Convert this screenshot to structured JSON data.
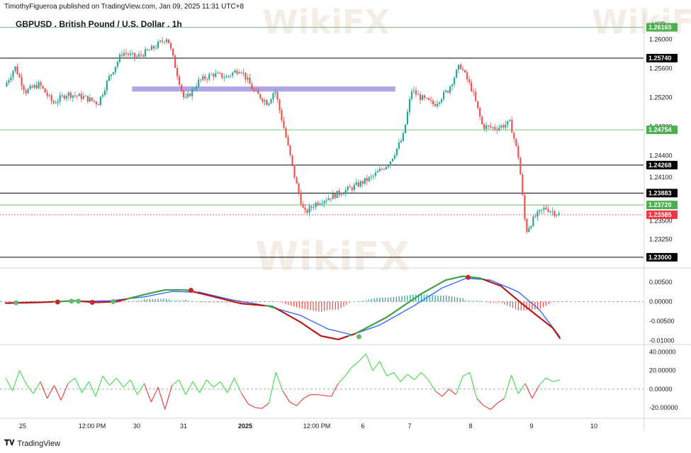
{
  "header": {
    "publisher": "TimothyFigueroa published on TradingView.com, Jan 09, 2025 11:31 UTC+8",
    "title": "GBPUSD . British Pound / U.S. Dollar . 1h",
    "currency": "USD",
    "footer": "TradingView",
    "watermark": "WikiFX"
  },
  "colors": {
    "up": "#26a69a",
    "down": "#ef5350",
    "green_line": "#4caf50",
    "black_line": "#000000",
    "zone": "#9c8fe0",
    "last_price": "#ef5350",
    "macd_fast": "#43a047",
    "macd_fast_dn": "#b71c1c",
    "macd_signal": "#2962ff",
    "osc_up": "#43d94b",
    "osc_dn": "#e53935"
  },
  "chart_data": [
    {
      "type": "candlestick",
      "name": "GBPUSD 1h price",
      "x_ticks": [
        "25",
        "12:00 PM",
        "30",
        "31",
        "2025",
        "12:00 PM",
        "6",
        "7",
        "8",
        "9",
        "10"
      ],
      "y_ticks": [
        "1.26000",
        "1.25600",
        "1.25200",
        "1.24800",
        "1.24400",
        "1.24100",
        "1.23500",
        "1.23250"
      ],
      "ylim": [
        1.2295,
        1.2615
      ],
      "levels": [
        {
          "value": 1.26165,
          "label": "1.26165",
          "kind": "green"
        },
        {
          "value": 1.2574,
          "label": "1.25740",
          "kind": "black"
        },
        {
          "value": 1.24754,
          "label": "1.24754",
          "kind": "green"
        },
        {
          "value": 1.24268,
          "label": "1.24268",
          "kind": "black"
        },
        {
          "value": 1.23883,
          "label": "1.23883",
          "kind": "black"
        },
        {
          "value": 1.2372,
          "label": "1.23720",
          "kind": "green"
        },
        {
          "value": 1.23585,
          "label": "1.23585",
          "kind": "last"
        },
        {
          "value": 1.23,
          "label": "1.23000",
          "kind": "black"
        }
      ],
      "resistance_zone": {
        "from_day": 3.65,
        "to_day": 11.25,
        "low": 1.2528,
        "high": 1.2535
      },
      "path": [
        {
          "day": 0.0,
          "price": 1.2535
        },
        {
          "day": 0.3,
          "price": 1.2562
        },
        {
          "day": 0.6,
          "price": 1.2528
        },
        {
          "day": 1.0,
          "price": 1.2538
        },
        {
          "day": 1.4,
          "price": 1.2512
        },
        {
          "day": 1.8,
          "price": 1.2525
        },
        {
          "day": 2.3,
          "price": 1.252
        },
        {
          "day": 2.7,
          "price": 1.2512
        },
        {
          "day": 3.0,
          "price": 1.2546
        },
        {
          "day": 3.4,
          "price": 1.2582
        },
        {
          "day": 3.8,
          "price": 1.2575
        },
        {
          "day": 4.3,
          "price": 1.2588
        },
        {
          "day": 4.7,
          "price": 1.2603
        },
        {
          "day": 4.95,
          "price": 1.2558
        },
        {
          "day": 5.2,
          "price": 1.2515
        },
        {
          "day": 5.6,
          "price": 1.2542
        },
        {
          "day": 6.0,
          "price": 1.2552
        },
        {
          "day": 6.4,
          "price": 1.2548
        },
        {
          "day": 6.8,
          "price": 1.256
        },
        {
          "day": 7.2,
          "price": 1.2528
        },
        {
          "day": 7.6,
          "price": 1.2512
        },
        {
          "day": 7.8,
          "price": 1.2531
        },
        {
          "day": 8.1,
          "price": 1.247
        },
        {
          "day": 8.4,
          "price": 1.2405
        },
        {
          "day": 8.65,
          "price": 1.236
        },
        {
          "day": 9.0,
          "price": 1.2375
        },
        {
          "day": 9.5,
          "price": 1.2385
        },
        {
          "day": 10.0,
          "price": 1.2395
        },
        {
          "day": 10.6,
          "price": 1.241
        },
        {
          "day": 11.1,
          "price": 1.243
        },
        {
          "day": 11.5,
          "price": 1.2465
        },
        {
          "day": 11.75,
          "price": 1.253
        },
        {
          "day": 12.0,
          "price": 1.252
        },
        {
          "day": 12.4,
          "price": 1.251
        },
        {
          "day": 12.8,
          "price": 1.253
        },
        {
          "day": 13.15,
          "price": 1.2565
        },
        {
          "day": 13.5,
          "price": 1.253
        },
        {
          "day": 13.8,
          "price": 1.248
        },
        {
          "day": 14.2,
          "price": 1.2478
        },
        {
          "day": 14.6,
          "price": 1.2485
        },
        {
          "day": 14.85,
          "price": 1.2435
        },
        {
          "day": 15.05,
          "price": 1.2335
        },
        {
          "day": 15.3,
          "price": 1.2355
        },
        {
          "day": 15.6,
          "price": 1.2368
        },
        {
          "day": 16.0,
          "price": 1.2359
        }
      ]
    },
    {
      "type": "line",
      "name": "MACD",
      "y_ticks": [
        "0.00500",
        "0.00000",
        "-0.00500",
        "-0.01000"
      ],
      "ylim": [
        -0.011,
        0.0068
      ],
      "fast": [
        {
          "day": 0.0,
          "value": -0.0004
        },
        {
          "day": 1.0,
          "value": -0.0002
        },
        {
          "day": 2.0,
          "value": 0.0002
        },
        {
          "day": 2.6,
          "value": -0.0002
        },
        {
          "day": 3.2,
          "value": 0.0
        },
        {
          "day": 4.0,
          "value": 0.0018
        },
        {
          "day": 4.6,
          "value": 0.003
        },
        {
          "day": 5.2,
          "value": 0.003
        },
        {
          "day": 5.9,
          "value": 0.0015
        },
        {
          "day": 6.8,
          "value": -0.0005
        },
        {
          "day": 7.7,
          "value": -0.0012
        },
        {
          "day": 8.5,
          "value": -0.0052
        },
        {
          "day": 9.1,
          "value": -0.0088
        },
        {
          "day": 9.6,
          "value": -0.0097
        },
        {
          "day": 10.1,
          "value": -0.0082
        },
        {
          "day": 11.0,
          "value": -0.004
        },
        {
          "day": 12.0,
          "value": 0.002
        },
        {
          "day": 12.7,
          "value": 0.0055
        },
        {
          "day": 13.2,
          "value": 0.0065
        },
        {
          "day": 13.7,
          "value": 0.006
        },
        {
          "day": 14.3,
          "value": 0.004
        },
        {
          "day": 14.9,
          "value": -0.0005
        },
        {
          "day": 15.4,
          "value": -0.004
        },
        {
          "day": 15.8,
          "value": -0.0068
        },
        {
          "day": 16.0,
          "value": -0.0094
        }
      ],
      "signal": [
        {
          "day": 0.0,
          "value": -0.0003
        },
        {
          "day": 1.0,
          "value": -0.0001
        },
        {
          "day": 2.0,
          "value": 0.0001
        },
        {
          "day": 3.0,
          "value": 0.0002
        },
        {
          "day": 4.0,
          "value": 0.0012
        },
        {
          "day": 4.8,
          "value": 0.0026
        },
        {
          "day": 5.6,
          "value": 0.0024
        },
        {
          "day": 6.5,
          "value": 0.0005
        },
        {
          "day": 7.5,
          "value": -0.001
        },
        {
          "day": 8.5,
          "value": -0.0035
        },
        {
          "day": 9.3,
          "value": -0.007
        },
        {
          "day": 10.0,
          "value": -0.0085
        },
        {
          "day": 10.8,
          "value": -0.006
        },
        {
          "day": 11.8,
          "value": -0.001
        },
        {
          "day": 12.6,
          "value": 0.0035
        },
        {
          "day": 13.3,
          "value": 0.006
        },
        {
          "day": 14.0,
          "value": 0.0055
        },
        {
          "day": 14.8,
          "value": 0.0025
        },
        {
          "day": 15.4,
          "value": -0.002
        },
        {
          "day": 16.0,
          "value": -0.009
        }
      ],
      "cross_markers": [
        {
          "day": 0.3,
          "value": -0.0003,
          "color": "green"
        },
        {
          "day": 1.5,
          "value": -0.0001,
          "color": "red"
        },
        {
          "day": 1.9,
          "value": 0.0001,
          "color": "green"
        },
        {
          "day": 2.1,
          "value": 0.0001,
          "color": "green"
        },
        {
          "day": 2.5,
          "value": -0.0002,
          "color": "red"
        },
        {
          "day": 3.1,
          "value": 0.0,
          "color": "green"
        },
        {
          "day": 5.35,
          "value": 0.0029,
          "color": "red"
        },
        {
          "day": 10.2,
          "value": -0.009,
          "color": "green"
        },
        {
          "day": 13.35,
          "value": 0.0062,
          "color": "red"
        }
      ]
    },
    {
      "type": "line",
      "name": "Oscillator",
      "y_ticks": [
        "40.00000",
        "20.00000",
        "0.00000",
        "-20.00000"
      ],
      "ylim": [
        -30,
        45
      ],
      "points": [
        {
          "day": 0.0,
          "value": 12
        },
        {
          "day": 0.2,
          "value": -2
        },
        {
          "day": 0.4,
          "value": 20
        },
        {
          "day": 0.6,
          "value": 5
        },
        {
          "day": 0.8,
          "value": -5
        },
        {
          "day": 1.0,
          "value": 8
        },
        {
          "day": 1.2,
          "value": -10
        },
        {
          "day": 1.4,
          "value": 4
        },
        {
          "day": 1.6,
          "value": -12
        },
        {
          "day": 1.8,
          "value": 6
        },
        {
          "day": 2.0,
          "value": 12
        },
        {
          "day": 2.2,
          "value": -4
        },
        {
          "day": 2.4,
          "value": 8
        },
        {
          "day": 2.6,
          "value": -8
        },
        {
          "day": 2.8,
          "value": 14
        },
        {
          "day": 3.0,
          "value": 4
        },
        {
          "day": 3.2,
          "value": 12
        },
        {
          "day": 3.4,
          "value": 2
        },
        {
          "day": 3.6,
          "value": 10
        },
        {
          "day": 3.8,
          "value": -6
        },
        {
          "day": 4.0,
          "value": 6
        },
        {
          "day": 4.2,
          "value": -14
        },
        {
          "day": 4.4,
          "value": 2
        },
        {
          "day": 4.6,
          "value": -22
        },
        {
          "day": 4.8,
          "value": 4
        },
        {
          "day": 5.0,
          "value": 10
        },
        {
          "day": 5.2,
          "value": -6
        },
        {
          "day": 5.4,
          "value": 8
        },
        {
          "day": 5.6,
          "value": -4
        },
        {
          "day": 5.8,
          "value": 10
        },
        {
          "day": 6.0,
          "value": 2
        },
        {
          "day": 6.2,
          "value": 8
        },
        {
          "day": 6.4,
          "value": -4
        },
        {
          "day": 6.6,
          "value": 12
        },
        {
          "day": 6.8,
          "value": -4
        },
        {
          "day": 7.0,
          "value": -16
        },
        {
          "day": 7.2,
          "value": -20
        },
        {
          "day": 7.4,
          "value": -21
        },
        {
          "day": 7.6,
          "value": -15
        },
        {
          "day": 7.8,
          "value": 18
        },
        {
          "day": 8.0,
          "value": -2
        },
        {
          "day": 8.2,
          "value": -14
        },
        {
          "day": 8.4,
          "value": -18
        },
        {
          "day": 8.6,
          "value": -10
        },
        {
          "day": 8.8,
          "value": -6
        },
        {
          "day": 9.0,
          "value": -6
        },
        {
          "day": 9.4,
          "value": -8
        },
        {
          "day": 9.6,
          "value": 6
        },
        {
          "day": 9.8,
          "value": 14
        },
        {
          "day": 10.0,
          "value": 24
        },
        {
          "day": 10.2,
          "value": 30
        },
        {
          "day": 10.4,
          "value": 38
        },
        {
          "day": 10.6,
          "value": 20
        },
        {
          "day": 10.8,
          "value": 30
        },
        {
          "day": 11.0,
          "value": 14
        },
        {
          "day": 11.2,
          "value": 18
        },
        {
          "day": 11.4,
          "value": 8
        },
        {
          "day": 11.6,
          "value": 16
        },
        {
          "day": 11.8,
          "value": 10
        },
        {
          "day": 12.0,
          "value": 18
        },
        {
          "day": 12.2,
          "value": 10
        },
        {
          "day": 12.4,
          "value": -2
        },
        {
          "day": 12.6,
          "value": -8
        },
        {
          "day": 12.8,
          "value": 0
        },
        {
          "day": 13.0,
          "value": -6
        },
        {
          "day": 13.2,
          "value": 14
        },
        {
          "day": 13.4,
          "value": 18
        },
        {
          "day": 13.6,
          "value": -10
        },
        {
          "day": 13.8,
          "value": -18
        },
        {
          "day": 14.0,
          "value": -22
        },
        {
          "day": 14.2,
          "value": -15
        },
        {
          "day": 14.4,
          "value": -10
        },
        {
          "day": 14.6,
          "value": 15
        },
        {
          "day": 14.8,
          "value": -5
        },
        {
          "day": 15.0,
          "value": 6
        },
        {
          "day": 15.2,
          "value": -10
        },
        {
          "day": 15.4,
          "value": 4
        },
        {
          "day": 15.6,
          "value": 12
        },
        {
          "day": 15.8,
          "value": 8
        },
        {
          "day": 16.0,
          "value": 10
        }
      ]
    }
  ]
}
